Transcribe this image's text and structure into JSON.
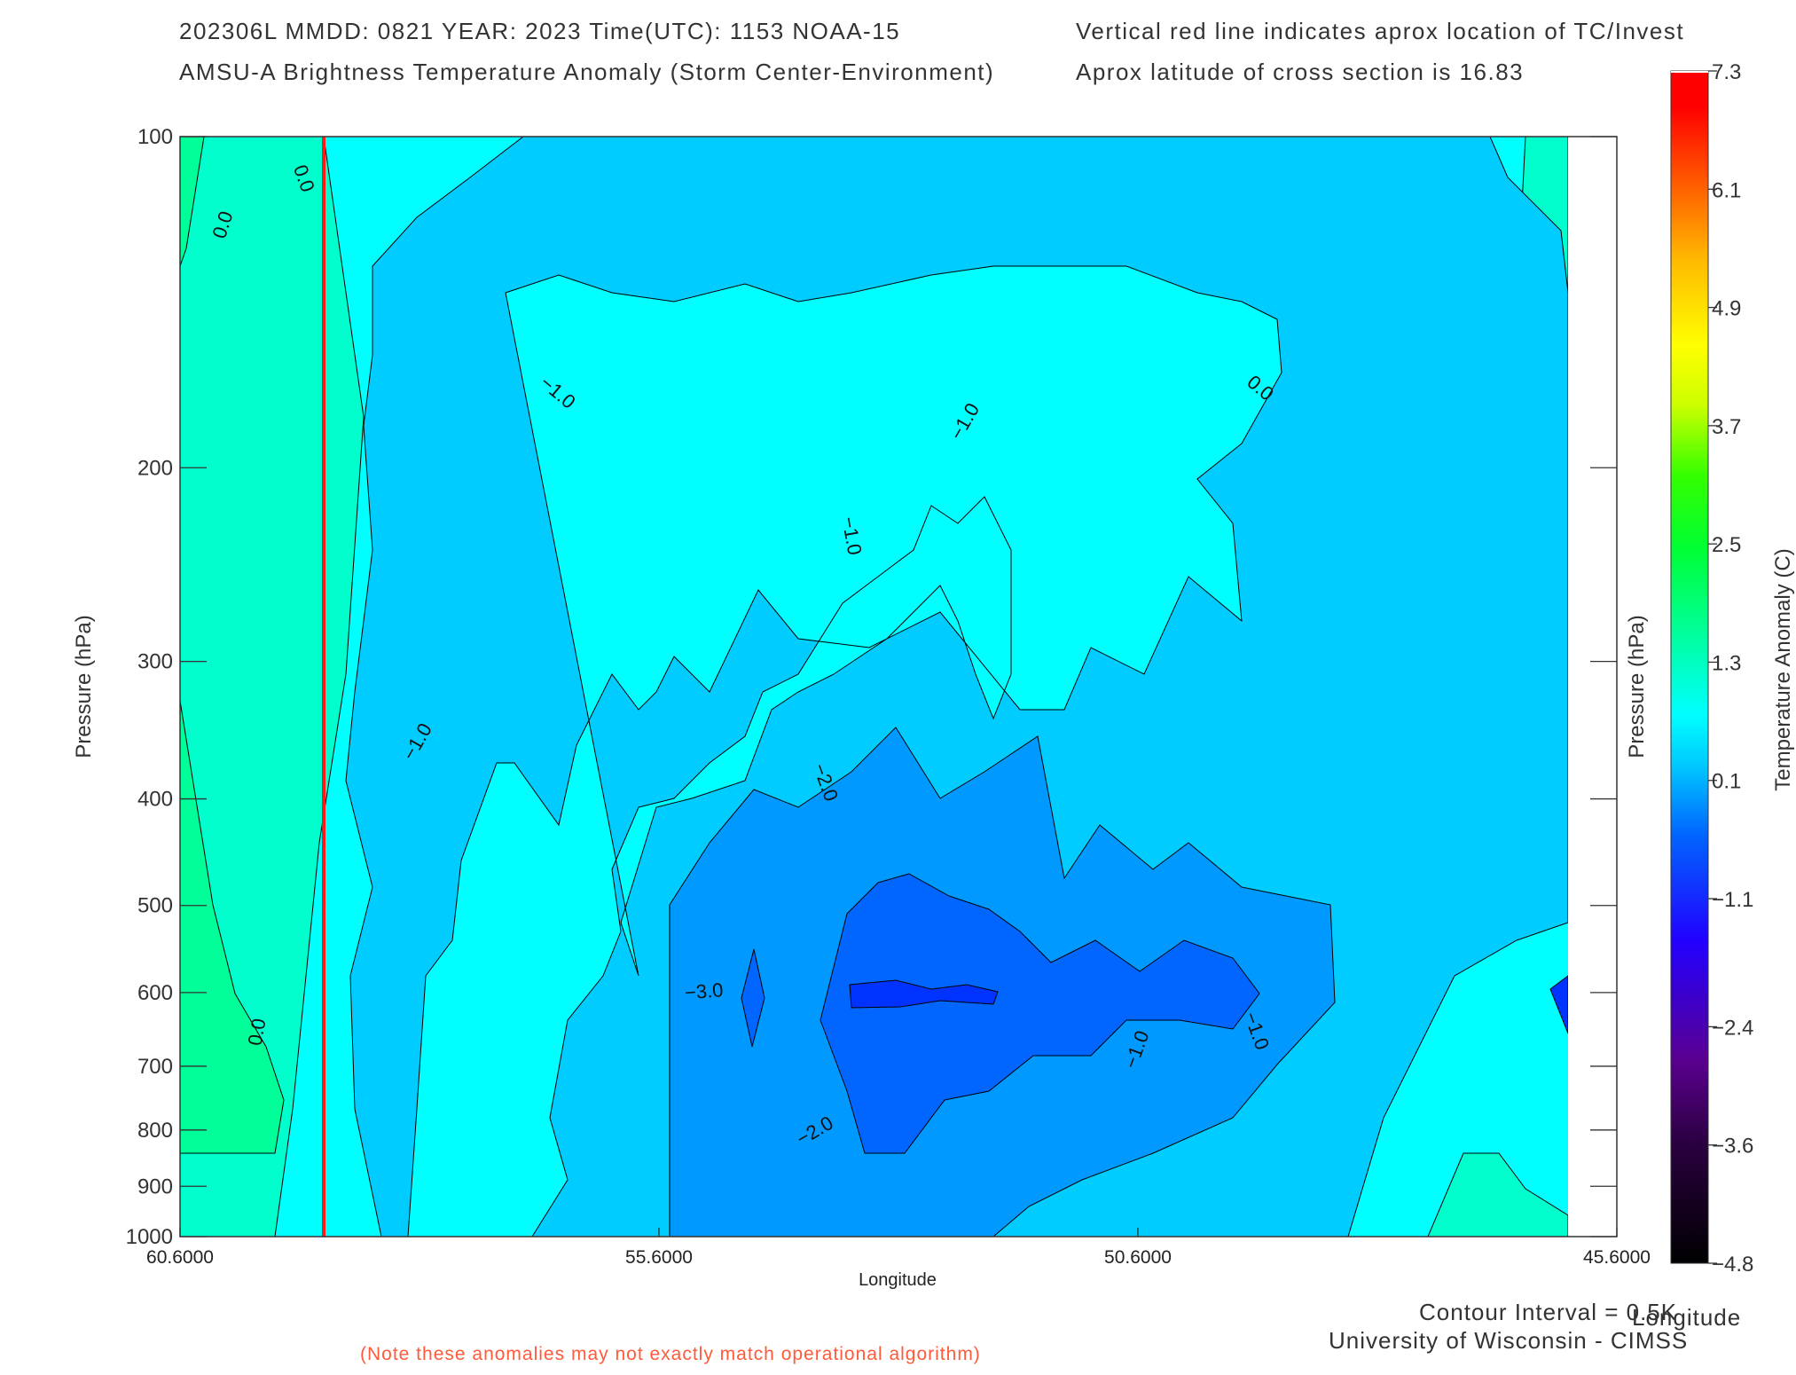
{
  "header": {
    "line1_left": "202306L  MMDD: 0821 YEAR: 2023 Time(UTC): 1153 NOAA-15",
    "line1_right": "Vertical red line indicates aprox location of TC/Invest",
    "line2_left": "AMSU-A Brightness Temperature Anomaly (Storm Center-Environment)",
    "line2_right": "Aprox latitude of cross section is 16.83"
  },
  "footer": {
    "contour_interval": "Contour Interval = 0.5K",
    "credit": "University of Wisconsin - CIMSS",
    "note": "(Note these anomalies may not exactly match operational algorithm)",
    "right_xlabel": "Longitude"
  },
  "colors": {
    "tc_line": "#ff1a1a",
    "band_cyan": "#00ffff",
    "band_lightblue": "#00ccff",
    "band_midblue": "#0099ff",
    "band_blue": "#0066ff",
    "band_deepblue": "#0033ff",
    "band_green_light": "#00ffcc",
    "band_green": "#00ff99"
  },
  "chart_data": {
    "type": "heatmap",
    "xlabel": "Longitude",
    "ylabel": "Pressure (hPa)",
    "ylabel_right": "Pressure (hPa)",
    "colorbar_label": "Temperature Anomaly (C)",
    "xlim": [
      60.6,
      45.6
    ],
    "ylim": [
      1000,
      100
    ],
    "yscale": "log",
    "x_ticks": [
      "60.6000",
      "55.6000",
      "50.6000",
      "45.6000"
    ],
    "y_ticks": [
      "100",
      "200",
      "300",
      "400",
      "500",
      "600",
      "700",
      "800",
      "900",
      "1000"
    ],
    "colorbar_ticks": [
      "7.3",
      "6.1",
      "4.9",
      "3.7",
      "2.5",
      "1.3",
      "0.1",
      "-1.1",
      "-2.4",
      "-3.6",
      "-4.8"
    ],
    "colorbar_range": [
      -4.8,
      7.3
    ],
    "tc_longitude": 59.1,
    "contour_interval": 0.5,
    "contour_labels": [
      "0.0",
      "0.0",
      "0.0",
      "-1.0",
      "-1.0",
      "-1.0",
      "-2.0",
      "-3.0",
      "-2.0",
      "-1.0",
      "-1.0",
      "-1.0",
      "0.0"
    ]
  }
}
